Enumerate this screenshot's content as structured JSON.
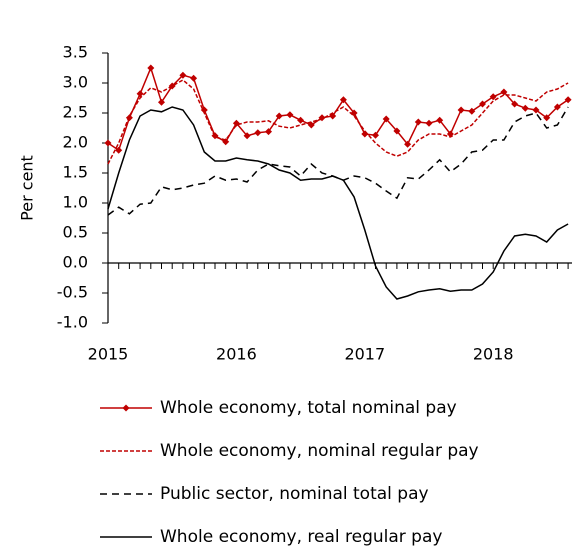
{
  "chart_data": {
    "type": "line",
    "y_label": "Per cent",
    "categories": [
      "2015",
      null,
      null,
      null,
      null,
      null,
      null,
      null,
      null,
      null,
      null,
      null,
      "2016",
      null,
      null,
      null,
      null,
      null,
      null,
      null,
      null,
      null,
      null,
      null,
      "2017",
      null,
      null,
      null,
      null,
      null,
      null,
      null,
      null,
      null,
      null,
      null,
      "2018",
      null,
      null,
      null,
      null,
      null,
      null,
      null
    ],
    "ylim": [
      -1,
      3.5
    ],
    "yticks": [
      {
        "value": -1,
        "label": "-1.0"
      },
      -0.5,
      {
        "value": 0,
        "label": "0.0"
      },
      0.5,
      {
        "value": 1,
        "label": "1.0"
      },
      1.5,
      {
        "value": 2,
        "label": "2.0"
      },
      2.5,
      {
        "value": 3,
        "label": "3.0"
      },
      3.5
    ],
    "series": [
      {
        "name": "Whole economy, total nominal pay",
        "color": "#c00000",
        "dash": "solid",
        "marker": "diamond",
        "values": [
          2.0,
          1.88,
          2.42,
          2.82,
          3.25,
          2.68,
          2.95,
          3.13,
          3.08,
          2.55,
          2.12,
          2.02,
          2.33,
          2.12,
          2.17,
          2.19,
          2.45,
          2.47,
          2.38,
          2.3,
          2.42,
          2.45,
          2.72,
          2.5,
          2.15,
          2.13,
          2.4,
          2.2,
          1.98,
          2.35,
          2.33,
          2.38,
          2.15,
          2.55,
          2.53,
          2.65,
          2.77,
          2.85,
          2.65,
          2.58,
          2.55,
          2.42,
          2.6,
          2.72
        ]
      },
      {
        "name": "Whole economy, nominal regular pay",
        "color": "#c00000",
        "dash": "dashed",
        "marker": "none",
        "values": [
          1.65,
          2.0,
          2.45,
          2.75,
          2.92,
          2.85,
          2.95,
          3.05,
          2.9,
          2.5,
          2.1,
          2.05,
          2.3,
          2.35,
          2.35,
          2.37,
          2.28,
          2.25,
          2.3,
          2.35,
          2.4,
          2.5,
          2.6,
          2.45,
          2.2,
          2.0,
          1.85,
          1.78,
          1.85,
          2.05,
          2.15,
          2.15,
          2.1,
          2.2,
          2.3,
          2.5,
          2.7,
          2.8,
          2.8,
          2.75,
          2.7,
          2.85,
          2.9,
          3.0
        ]
      },
      {
        "name": "Public sector, nominal total pay",
        "color": "#000000",
        "dash": "longdash",
        "marker": "none",
        "values": [
          0.8,
          0.93,
          0.82,
          0.98,
          1.0,
          1.27,
          1.22,
          1.25,
          1.3,
          1.33,
          1.45,
          1.38,
          1.4,
          1.35,
          1.55,
          1.65,
          1.62,
          1.6,
          1.45,
          1.65,
          1.5,
          1.45,
          1.38,
          1.45,
          1.42,
          1.33,
          1.2,
          1.08,
          1.42,
          1.4,
          1.55,
          1.72,
          1.52,
          1.65,
          1.85,
          1.88,
          2.05,
          2.05,
          2.35,
          2.45,
          2.5,
          2.25,
          2.3,
          2.6
        ]
      },
      {
        "name": "Whole economy, real regular pay",
        "color": "#000000",
        "dash": "solid",
        "marker": "none",
        "values": [
          0.9,
          1.5,
          2.05,
          2.45,
          2.55,
          2.52,
          2.6,
          2.55,
          2.3,
          1.85,
          1.7,
          1.7,
          1.75,
          1.72,
          1.7,
          1.65,
          1.55,
          1.5,
          1.38,
          1.4,
          1.4,
          1.45,
          1.38,
          1.1,
          0.55,
          -0.05,
          -0.4,
          -0.6,
          -0.55,
          -0.48,
          -0.45,
          -0.43,
          -0.47,
          -0.45,
          -0.45,
          -0.35,
          -0.15,
          0.2,
          0.45,
          0.48,
          0.45,
          0.35,
          0.55,
          0.65
        ]
      }
    ]
  }
}
